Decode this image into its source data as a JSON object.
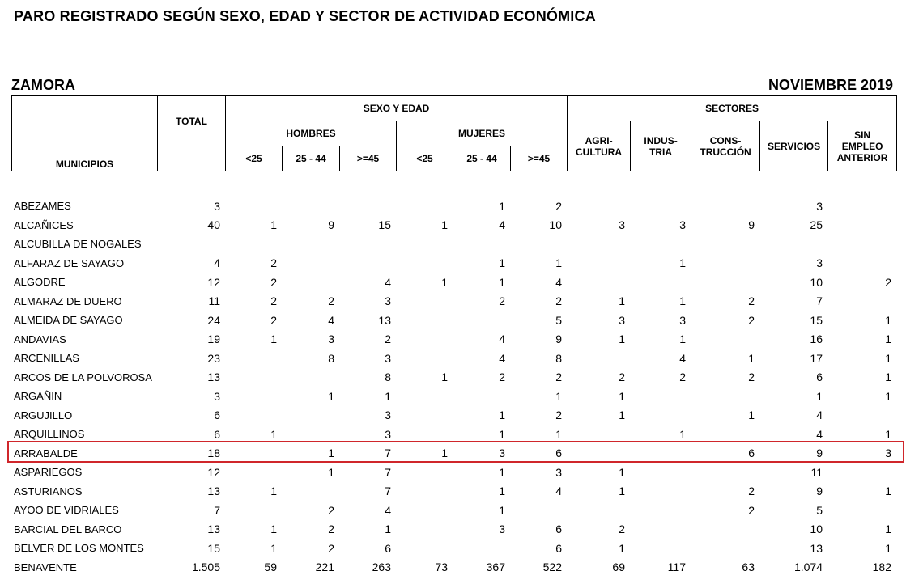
{
  "title": "PARO REGISTRADO SEGÚN SEXO, EDAD Y SECTOR DE ACTIVIDAD ECONÓMICA",
  "region": "ZAMORA",
  "period": "NOVIEMBRE 2019",
  "headers": {
    "municipios": "MUNICIPIOS",
    "total": "TOTAL",
    "sexo_edad": "SEXO Y EDAD",
    "sectores": "SECTORES",
    "hombres": "HOMBRES",
    "mujeres": "MUJERES",
    "h_lt25": "<25",
    "h_25_44": "25 - 44",
    "h_ge45": ">=45",
    "m_lt25": "<25",
    "m_25_44": "25 - 44",
    "m_ge45": ">=45",
    "agricultura": "AGRI-\nCULTURA",
    "industria": "INDUS-\nTRIA",
    "construccion": "CONS-\nTRUCCIÓN",
    "servicios": "SERVICIOS",
    "sin_empleo": "SIN\nEMPLEO\nANTERIOR"
  },
  "rows": [
    {
      "name": "ABEZAMES",
      "v": [
        "3",
        "",
        "",
        "",
        "",
        "1",
        "2",
        "",
        "",
        "",
        "3",
        ""
      ]
    },
    {
      "name": "ALCAÑICES",
      "v": [
        "40",
        "1",
        "9",
        "15",
        "1",
        "4",
        "10",
        "3",
        "3",
        "9",
        "25",
        ""
      ]
    },
    {
      "name": "ALCUBILLA DE NOGALES",
      "v": [
        "",
        "",
        "",
        "",
        "",
        "",
        "",
        "",
        "",
        "",
        "",
        ""
      ]
    },
    {
      "name": "ALFARAZ DE SAYAGO",
      "v": [
        "4",
        "2",
        "",
        "",
        "",
        "1",
        "1",
        "",
        "1",
        "",
        "3",
        ""
      ]
    },
    {
      "name": "ALGODRE",
      "v": [
        "12",
        "2",
        "",
        "4",
        "1",
        "1",
        "4",
        "",
        "",
        "",
        "10",
        "2"
      ]
    },
    {
      "name": "ALMARAZ DE DUERO",
      "v": [
        "11",
        "2",
        "2",
        "3",
        "",
        "2",
        "2",
        "1",
        "1",
        "2",
        "7",
        ""
      ]
    },
    {
      "name": "ALMEIDA DE SAYAGO",
      "v": [
        "24",
        "2",
        "4",
        "13",
        "",
        "",
        "5",
        "3",
        "3",
        "2",
        "15",
        "1"
      ]
    },
    {
      "name": "ANDAVIAS",
      "v": [
        "19",
        "1",
        "3",
        "2",
        "",
        "4",
        "9",
        "1",
        "1",
        "",
        "16",
        "1"
      ]
    },
    {
      "name": "ARCENILLAS",
      "v": [
        "23",
        "",
        "8",
        "3",
        "",
        "4",
        "8",
        "",
        "4",
        "1",
        "17",
        "1"
      ]
    },
    {
      "name": "ARCOS DE LA POLVOROSA",
      "v": [
        "13",
        "",
        "",
        "8",
        "1",
        "2",
        "2",
        "2",
        "2",
        "2",
        "6",
        "1"
      ]
    },
    {
      "name": "ARGAÑIN",
      "v": [
        "3",
        "",
        "1",
        "1",
        "",
        "",
        "1",
        "1",
        "",
        "",
        "1",
        "1"
      ]
    },
    {
      "name": "ARGUJILLO",
      "v": [
        "6",
        "",
        "",
        "3",
        "",
        "1",
        "2",
        "1",
        "",
        "1",
        "4",
        ""
      ]
    },
    {
      "name": "ARQUILLINOS",
      "v": [
        "6",
        "1",
        "",
        "3",
        "",
        "1",
        "1",
        "",
        "1",
        "",
        "4",
        "1"
      ]
    },
    {
      "name": "ARRABALDE",
      "v": [
        "18",
        "",
        "1",
        "7",
        "1",
        "3",
        "6",
        "",
        "",
        "6",
        "9",
        "3"
      ]
    },
    {
      "name": "ASPARIEGOS",
      "v": [
        "12",
        "",
        "1",
        "7",
        "",
        "1",
        "3",
        "1",
        "",
        "",
        "11",
        ""
      ]
    },
    {
      "name": "ASTURIANOS",
      "v": [
        "13",
        "1",
        "",
        "7",
        "",
        "1",
        "4",
        "1",
        "",
        "2",
        "9",
        "1"
      ]
    },
    {
      "name": "AYOO DE VIDRIALES",
      "v": [
        "7",
        "",
        "2",
        "4",
        "",
        "1",
        "",
        "",
        "",
        "2",
        "5",
        ""
      ]
    },
    {
      "name": "BARCIAL DEL BARCO",
      "v": [
        "13",
        "1",
        "2",
        "1",
        "",
        "3",
        "6",
        "2",
        "",
        "",
        "10",
        "1"
      ]
    },
    {
      "name": "BELVER DE LOS MONTES",
      "v": [
        "15",
        "1",
        "2",
        "6",
        "",
        "",
        "6",
        "1",
        "",
        "",
        "13",
        "1"
      ]
    },
    {
      "name": "BENAVENTE",
      "v": [
        "1.505",
        "59",
        "221",
        "263",
        "73",
        "367",
        "522",
        "69",
        "117",
        "63",
        "1.074",
        "182"
      ]
    }
  ],
  "highlight_color": "#d0262b"
}
